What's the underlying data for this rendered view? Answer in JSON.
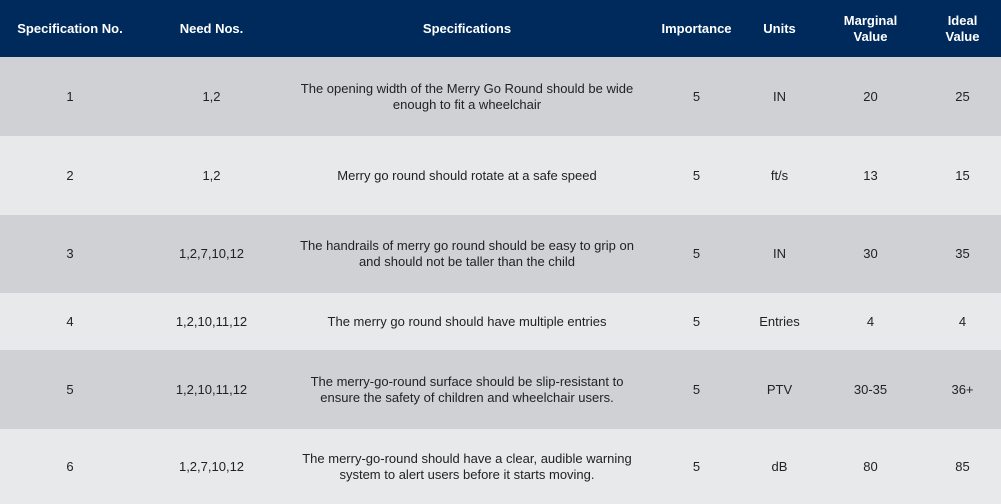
{
  "header": {
    "spec_no": "Specification No.",
    "need_nos": "Need Nos.",
    "specifications": "Specifications",
    "importance": "Importance",
    "units": "Units",
    "marginal_value": "Marginal Value",
    "ideal_value": "Ideal Value"
  },
  "rows": [
    {
      "spec_no": "1",
      "need_nos": "1,2",
      "specification": "The opening width of the Merry Go Round should be wide enough to fit a wheelchair",
      "importance": "5",
      "units": "IN",
      "marginal": "20",
      "ideal": "25"
    },
    {
      "spec_no": "2",
      "need_nos": "1,2",
      "specification": "Merry go round should rotate at a safe speed",
      "importance": "5",
      "units": "ft/s",
      "marginal": "13",
      "ideal": "15"
    },
    {
      "spec_no": "3",
      "need_nos": "1,2,7,10,12",
      "specification": "The handrails of merry go round should be easy to grip on and should not be taller than the child",
      "importance": "5",
      "units": "IN",
      "marginal": "30",
      "ideal": "35"
    },
    {
      "spec_no": "4",
      "need_nos": "1,2,10,11,12",
      "specification": "The merry go round should have multiple entries",
      "importance": "5",
      "units": "Entries",
      "marginal": "4",
      "ideal": "4"
    },
    {
      "spec_no": "5",
      "need_nos": "1,2,10,11,12",
      "specification": "The merry-go-round surface should be slip-resistant to ensure the safety of children and wheelchair users.",
      "importance": "5",
      "units": "PTV",
      "marginal": "30-35",
      "ideal": "36+"
    },
    {
      "spec_no": "6",
      "need_nos": "1,2,7,10,12",
      "specification": "The merry-go-round should have a clear, audible warning system to alert users before it starts moving.",
      "importance": "5",
      "units": "dB",
      "marginal": "80",
      "ideal": "85"
    }
  ],
  "colors": {
    "header_bg": "#002a5c",
    "row_dark": "#d0d1d5",
    "row_light": "#e8e9eb"
  }
}
